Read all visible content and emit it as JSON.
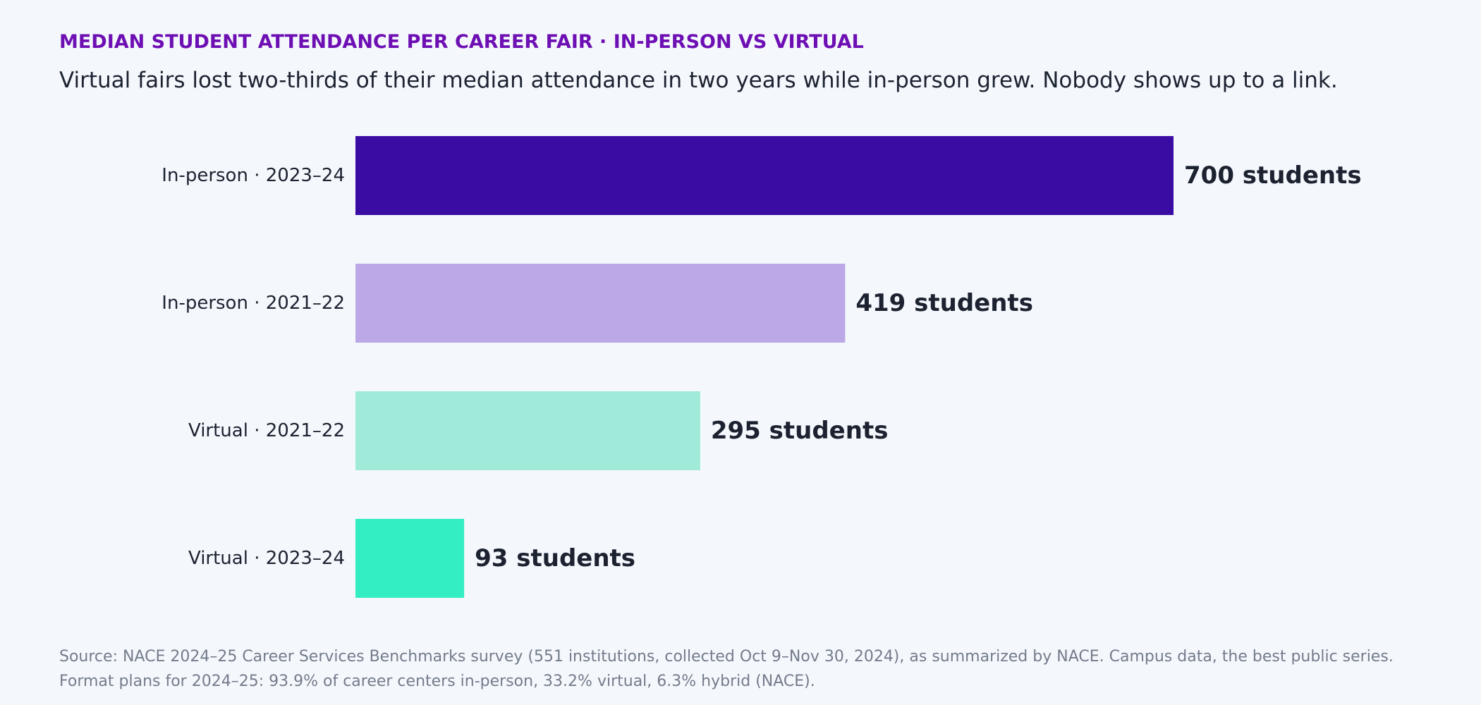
{
  "header": {
    "kicker": "MEDIAN STUDENT ATTENDANCE PER CAREER FAIR · IN-PERSON VS VIRTUAL",
    "subtitle": "Virtual fairs lost two-thirds of their median attendance in two years while in-person grew. Nobody shows up to a link."
  },
  "chart_data": {
    "type": "bar",
    "orientation": "horizontal",
    "title": "MEDIAN STUDENT ATTENDANCE PER CAREER FAIR · IN-PERSON VS VIRTUAL",
    "categories": [
      "In-person · 2023–24",
      "In-person · 2021–22",
      "Virtual · 2021–22",
      "Virtual · 2023–24"
    ],
    "values": [
      700,
      419,
      295,
      93
    ],
    "value_labels": [
      "700 students",
      "419 students",
      "295 students",
      "93 students"
    ],
    "colors": [
      "#3a0ca3",
      "#bca8e6",
      "#a0eada",
      "#33edc3"
    ],
    "xlim": [
      0,
      700
    ],
    "grid": false,
    "unit": "students"
  },
  "footer": {
    "line1": "Source: NACE 2024–25 Career Services Benchmarks survey (551 institutions, collected Oct 9–Nov 30, 2024), as summarized by NACE. Campus data, the best public series.",
    "line2": "Format plans for 2024–25: 93.9% of career centers in-person, 33.2% virtual, 6.3% hybrid (NACE)."
  }
}
